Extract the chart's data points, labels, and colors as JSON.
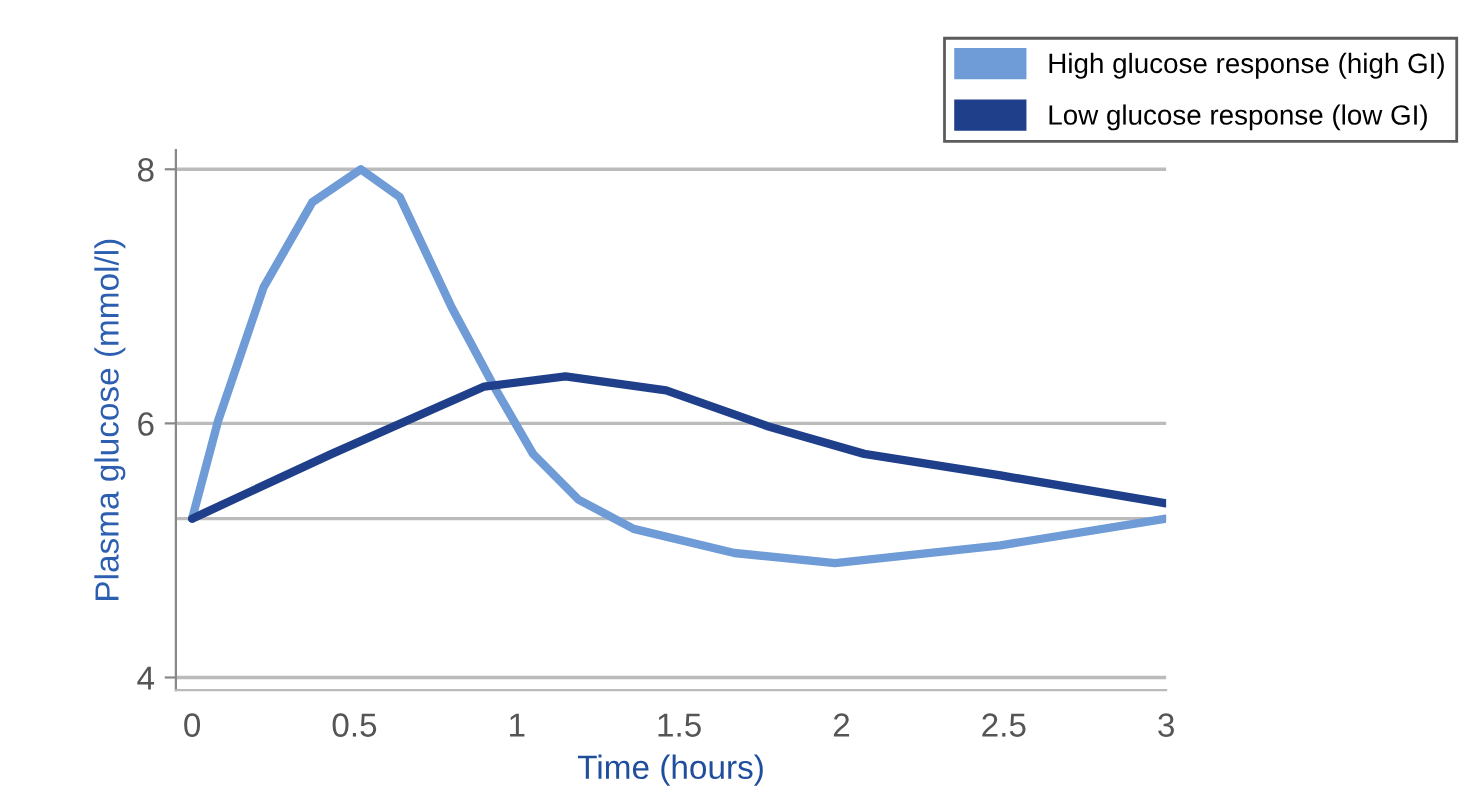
{
  "chart_data": {
    "type": "line",
    "xlabel": "Time (hours)",
    "ylabel": "Plasma glucose (mmol/l)",
    "series": [
      {
        "name": "High glucose response (high GI)",
        "color": "#6f9bd6",
        "x": [
          0,
          0.08,
          0.22,
          0.37,
          0.52,
          0.64,
          0.8,
          0.93,
          1.05,
          1.19,
          1.36,
          1.67,
          1.98,
          2.49,
          3
        ],
        "values": [
          5.25,
          6.02,
          7.07,
          7.74,
          8.0,
          7.78,
          6.91,
          6.29,
          5.76,
          5.4,
          5.17,
          4.98,
          4.9,
          5.04,
          5.25
        ]
      },
      {
        "name": "Low glucose response (low GI)",
        "color": "#1f3f8a",
        "x": [
          0,
          0.43,
          0.9,
          1.15,
          1.46,
          1.77,
          2.07,
          2.49,
          3
        ],
        "values": [
          5.25,
          5.76,
          6.29,
          6.37,
          6.26,
          5.98,
          5.76,
          5.59,
          5.37
        ]
      }
    ],
    "xlim": [
      -0.05,
      3
    ],
    "ylim": [
      3.9,
      8.15
    ],
    "xticks": [
      0,
      0.5,
      1,
      1.5,
      2,
      2.5,
      3
    ],
    "yticks": [
      4,
      6,
      8
    ],
    "ref_lines": [
      {
        "axis": "y",
        "value": 5.25,
        "color": "#bbbbbb"
      }
    ],
    "grid": "y",
    "legend": "top right",
    "marker": "none",
    "line_style": "solid"
  }
}
